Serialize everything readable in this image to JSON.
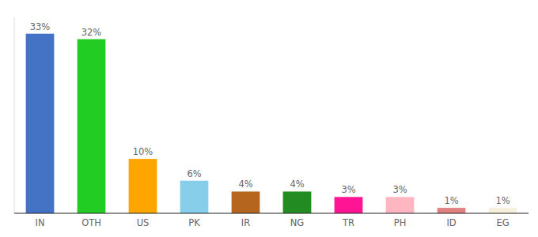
{
  "chart_data": {
    "type": "bar",
    "categories": [
      "IN",
      "OTH",
      "US",
      "PK",
      "IR",
      "NG",
      "TR",
      "PH",
      "ID",
      "EG"
    ],
    "values": [
      33,
      32,
      10,
      6,
      4,
      4,
      3,
      3,
      1,
      1
    ],
    "value_labels": [
      "33%",
      "32%",
      "10%",
      "6%",
      "4%",
      "4%",
      "3%",
      "3%",
      "1%",
      "1%"
    ],
    "colors": [
      "#4472C4",
      "#22CC22",
      "#FFA500",
      "#87CEEB",
      "#B5651D",
      "#228B22",
      "#FF1493",
      "#FFB6C1",
      "#E08080",
      "#F5F0DC"
    ],
    "ylim": [
      0,
      36
    ],
    "data_labels": true,
    "tick_labels": "x",
    "grid": false
  }
}
